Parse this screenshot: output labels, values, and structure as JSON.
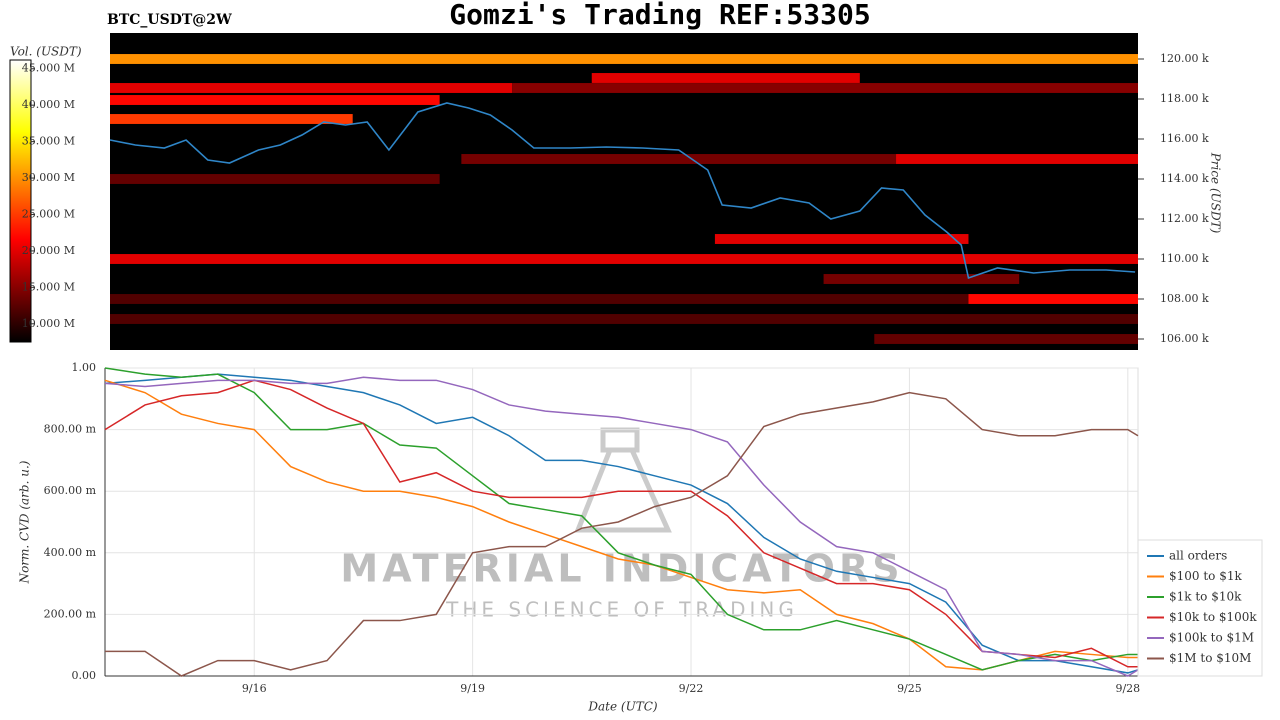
{
  "chart_data": [
    {
      "type": "heatmap",
      "title": "Gomzi's Trading REF:53305",
      "subtitle": "BTC_USDT@2W",
      "ylabel": "Price (USDT)",
      "xlim": [
        13.95,
        28.14
      ],
      "ylim": [
        105450,
        121300
      ],
      "yticks": [
        {
          "value": 106000,
          "label": "106.00 k"
        },
        {
          "value": 108000,
          "label": "108.00 k"
        },
        {
          "value": 110000,
          "label": "110.00 k"
        },
        {
          "value": 112000,
          "label": "112.00 k"
        },
        {
          "value": 114000,
          "label": "114.00 k"
        },
        {
          "value": 116000,
          "label": "116.00 k"
        },
        {
          "value": 118000,
          "label": "118.00 k"
        },
        {
          "value": 120000,
          "label": "120.00 k"
        }
      ],
      "colorbar": {
        "label": "Vol. (USDT)",
        "colormap": "hot",
        "lim": [
          7500000,
          46200000
        ],
        "ticks": [
          {
            "value": 10000000,
            "label": "10.000 M"
          },
          {
            "value": 15000000,
            "label": "15.000 M"
          },
          {
            "value": 20000000,
            "label": "20.000 M"
          },
          {
            "value": 25000000,
            "label": "25.000 M"
          },
          {
            "value": 30000000,
            "label": "30.000 M"
          },
          {
            "value": 35000000,
            "label": "35.000 M"
          },
          {
            "value": 40000000,
            "label": "40.000 M"
          },
          {
            "value": 45000000,
            "label": "45.000 M"
          }
        ]
      },
      "bands": [
        {
          "y": 120000,
          "x": [
            13.95,
            28.14
          ],
          "value": 30000000
        },
        {
          "y": 119050,
          "x": [
            20.6,
            24.3
          ],
          "value": 20000000
        },
        {
          "y": 118550,
          "x": [
            13.95,
            19.5
          ],
          "value": 20000000
        },
        {
          "y": 118550,
          "x": [
            19.5,
            28.14
          ],
          "value": 15000000
        },
        {
          "y": 117950,
          "x": [
            13.95,
            18.5
          ],
          "value": 22000000
        },
        {
          "y": 117000,
          "x": [
            13.95,
            17.3
          ],
          "value": 25000000
        },
        {
          "y": 115000,
          "x": [
            18.8,
            24.8
          ],
          "value": 14000000
        },
        {
          "y": 115000,
          "x": [
            24.8,
            28.14
          ],
          "value": 20000000
        },
        {
          "y": 114000,
          "x": [
            13.95,
            18.5
          ],
          "value": 13000000
        },
        {
          "y": 111000,
          "x": [
            22.3,
            25.8
          ],
          "value": 20000000
        },
        {
          "y": 110000,
          "x": [
            13.95,
            28.14
          ],
          "value": 20000000
        },
        {
          "y": 109000,
          "x": [
            23.8,
            26.5
          ],
          "value": 14000000
        },
        {
          "y": 108000,
          "x": [
            13.95,
            25.8
          ],
          "value": 12000000
        },
        {
          "y": 108000,
          "x": [
            25.8,
            28.14
          ],
          "value": 22000000
        },
        {
          "y": 107000,
          "x": [
            13.95,
            28.14
          ],
          "value": 12000000
        },
        {
          "y": 106000,
          "x": [
            24.5,
            28.14
          ],
          "value": 13000000
        }
      ],
      "x": [
        13.95,
        14.3,
        14.7,
        15.0,
        15.3,
        15.6,
        16.0,
        16.3,
        16.6,
        16.9,
        17.2,
        17.5,
        17.8,
        18.2,
        18.6,
        18.9,
        19.2,
        19.5,
        19.8,
        20.3,
        20.8,
        21.3,
        21.8,
        22.2,
        22.4,
        22.8,
        23.2,
        23.6,
        23.9,
        24.3,
        24.6,
        24.9,
        25.2,
        25.5,
        25.7,
        25.8,
        26.2,
        26.7,
        27.2,
        27.7,
        28.1
      ],
      "series": [
        {
          "color": "#2f86c8",
          "values": [
            115950,
            115700,
            115550,
            115950,
            114950,
            114800,
            115450,
            115700,
            116200,
            116850,
            116700,
            116850,
            115450,
            117350,
            117800,
            117550,
            117200,
            116450,
            115550,
            115550,
            115600,
            115550,
            115450,
            114450,
            112700,
            112550,
            113050,
            112800,
            112000,
            112400,
            113550,
            113450,
            112200,
            111350,
            110700,
            109050,
            109550,
            109300,
            109450,
            109450,
            109350
          ]
        }
      ]
    },
    {
      "type": "line",
      "xlabel": "Date (UTC)",
      "ylabel": "Norm. CVD (arb. u.)",
      "annotations": [
        "MATERIAL INDICATORS",
        "THE SCIENCE OF TRADING"
      ],
      "grid": true,
      "legend": "lower right",
      "xlim": [
        13.95,
        28.14
      ],
      "xticks": [
        {
          "value": 16,
          "label": "9/16"
        },
        {
          "value": 19,
          "label": "9/19"
        },
        {
          "value": 22,
          "label": "9/22"
        },
        {
          "value": 25,
          "label": "9/25"
        },
        {
          "value": 28,
          "label": "9/28"
        }
      ],
      "ylim": [
        0,
        1
      ],
      "yticks": [
        {
          "value": 0,
          "label": "0.00"
        },
        {
          "value": 0.2,
          "label": "200.00 m"
        },
        {
          "value": 0.4,
          "label": "400.00 m"
        },
        {
          "value": 0.6,
          "label": "600.00 m"
        },
        {
          "value": 0.8,
          "label": "800.00 m"
        },
        {
          "value": 1,
          "label": "1.00"
        }
      ],
      "x": [
        13.95,
        14.5,
        15,
        15.5,
        16,
        16.5,
        17,
        17.5,
        18,
        18.5,
        19,
        19.5,
        20,
        20.5,
        21,
        21.5,
        22,
        22.5,
        23,
        23.5,
        24,
        24.5,
        25,
        25.5,
        26,
        26.5,
        27,
        27.5,
        28,
        28.14
      ],
      "series": [
        {
          "name": "all orders",
          "color": "#1f77b4",
          "values": [
            0.95,
            0.96,
            0.97,
            0.98,
            0.97,
            0.96,
            0.94,
            0.92,
            0.88,
            0.82,
            0.84,
            0.78,
            0.7,
            0.7,
            0.68,
            0.65,
            0.62,
            0.56,
            0.45,
            0.38,
            0.34,
            0.32,
            0.3,
            0.24,
            0.1,
            0.05,
            0.05,
            0.03,
            0.01,
            0.02
          ]
        },
        {
          "name": "$100 to $1k",
          "color": "#ff7f0e",
          "values": [
            0.96,
            0.92,
            0.85,
            0.82,
            0.8,
            0.68,
            0.63,
            0.6,
            0.6,
            0.58,
            0.55,
            0.5,
            0.46,
            0.42,
            0.38,
            0.36,
            0.32,
            0.28,
            0.27,
            0.28,
            0.2,
            0.17,
            0.12,
            0.03,
            0.02,
            0.05,
            0.08,
            0.07,
            0.06,
            0.06
          ]
        },
        {
          "name": "$1k to $10k",
          "color": "#2ca02c",
          "values": [
            1.0,
            0.98,
            0.97,
            0.98,
            0.92,
            0.8,
            0.8,
            0.82,
            0.75,
            0.74,
            0.65,
            0.56,
            0.54,
            0.52,
            0.4,
            0.36,
            0.33,
            0.2,
            0.15,
            0.15,
            0.18,
            0.15,
            0.12,
            0.07,
            0.02,
            0.05,
            0.07,
            0.05,
            0.07,
            0.07
          ]
        },
        {
          "name": "$10k to $100k",
          "color": "#d62728",
          "values": [
            0.8,
            0.88,
            0.91,
            0.92,
            0.96,
            0.93,
            0.87,
            0.82,
            0.63,
            0.66,
            0.6,
            0.58,
            0.58,
            0.58,
            0.6,
            0.6,
            0.6,
            0.52,
            0.4,
            0.35,
            0.3,
            0.3,
            0.28,
            0.2,
            0.08,
            0.07,
            0.06,
            0.09,
            0.03,
            0.03
          ]
        },
        {
          "name": "$100k to $1M",
          "color": "#9467bd",
          "values": [
            0.95,
            0.94,
            0.95,
            0.96,
            0.96,
            0.95,
            0.95,
            0.97,
            0.96,
            0.96,
            0.93,
            0.88,
            0.86,
            0.85,
            0.84,
            0.82,
            0.8,
            0.76,
            0.62,
            0.5,
            0.42,
            0.4,
            0.34,
            0.28,
            0.08,
            0.07,
            0.05,
            0.05,
            0.0,
            0.02
          ]
        },
        {
          "name": "$1M to $10M",
          "color": "#8c564b",
          "values": [
            0.08,
            0.08,
            0.0,
            0.05,
            0.05,
            0.02,
            0.05,
            0.18,
            0.18,
            0.2,
            0.4,
            0.42,
            0.42,
            0.48,
            0.5,
            0.55,
            0.58,
            0.65,
            0.81,
            0.85,
            0.87,
            0.89,
            0.92,
            0.9,
            0.8,
            0.78,
            0.78,
            0.8,
            0.8,
            0.78
          ]
        }
      ]
    }
  ]
}
